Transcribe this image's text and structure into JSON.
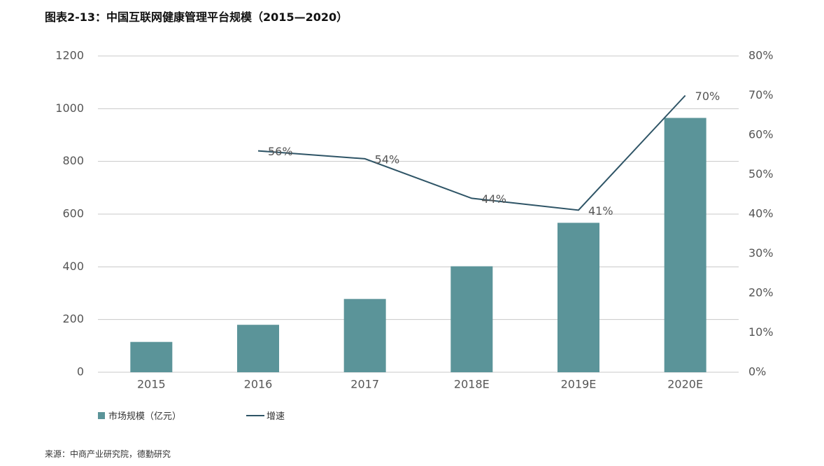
{
  "title": "图表2-13：中国互联网健康管理平台规模（2015—2020）",
  "source": "来源：中商产业研究院，德勤研究",
  "legend": {
    "bar_label": "市场规模（亿元）",
    "line_label": "增速"
  },
  "colors": {
    "bar": "#5b9499",
    "line": "#2e5466",
    "grid": "#c8c8c8",
    "text": "#555555"
  },
  "chart_data": {
    "type": "bar",
    "categories": [
      "2015",
      "2016",
      "2017",
      "2018E",
      "2019E",
      "2020E"
    ],
    "series": [
      {
        "name": "市场规模（亿元）",
        "type": "bar",
        "axis": "left",
        "values": [
          115,
          180,
          278,
          402,
          567,
          965
        ]
      },
      {
        "name": "增速",
        "type": "line",
        "axis": "right",
        "values": [
          null,
          56,
          54,
          44,
          41,
          70
        ],
        "labels": [
          "",
          "56%",
          "54%",
          "44%",
          "41%",
          "70%"
        ]
      }
    ],
    "y_left": {
      "min": 0,
      "max": 1200,
      "ticks": [
        "0",
        "200",
        "400",
        "600",
        "800",
        "1000",
        "1200"
      ]
    },
    "y_right": {
      "min": 0,
      "max": 80,
      "ticks": [
        "0%",
        "10%",
        "20%",
        "30%",
        "40%",
        "50%",
        "60%",
        "70%",
        "80%"
      ]
    },
    "grid": true,
    "legend_position": "bottom-left"
  }
}
